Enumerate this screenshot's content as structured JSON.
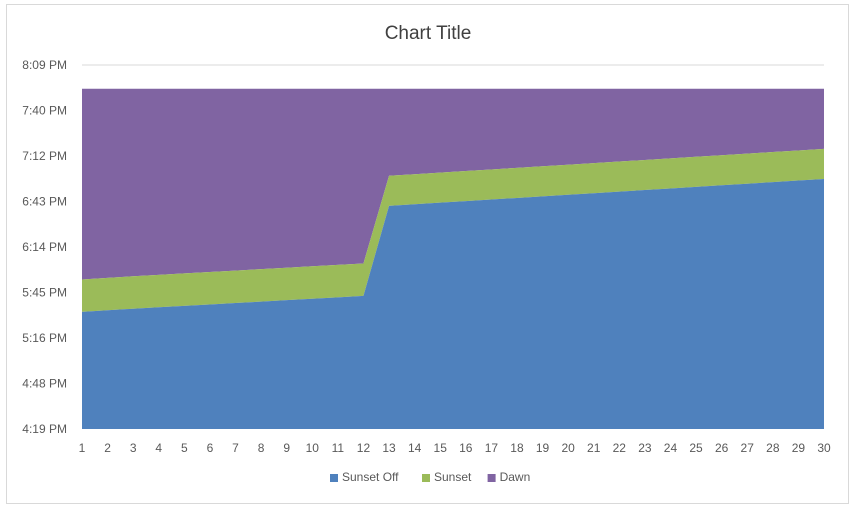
{
  "chart_data": {
    "type": "area",
    "stacked": true,
    "title": "Chart Title",
    "x": [
      1,
      2,
      3,
      4,
      5,
      6,
      7,
      8,
      9,
      10,
      11,
      12,
      13,
      14,
      15,
      16,
      17,
      18,
      19,
      20,
      21,
      22,
      23,
      24,
      25,
      26,
      27,
      28,
      29,
      30
    ],
    "y_tick_labels": [
      "4:19 PM",
      "4:48 PM",
      "5:16 PM",
      "5:45 PM",
      "6:14 PM",
      "6:43 PM",
      "7:12 PM",
      "7:40 PM",
      "8:09 PM"
    ],
    "ylim_minutes": [
      979,
      1209
    ],
    "grid": "horizontal at top only",
    "legend_position": "bottom",
    "series": [
      {
        "name": "Sunset Off",
        "color": "#4f81bd",
        "top_minutes": [
          1053,
          1054,
          1055,
          1055.9,
          1056.8,
          1057.7,
          1058.6,
          1059.5,
          1060.4,
          1061.3,
          1062.2,
          1063.1,
          1120,
          1121,
          1122,
          1123,
          1124,
          1125,
          1126,
          1127,
          1128,
          1129,
          1130,
          1131,
          1132,
          1133,
          1134,
          1135,
          1136,
          1137
        ]
      },
      {
        "name": "Sunset",
        "color": "#9bbb59",
        "top_minutes": [
          1073.5,
          1074.5,
          1075.5,
          1076.4,
          1077.3,
          1078.2,
          1079.1,
          1080,
          1080.9,
          1081.8,
          1082.7,
          1083.6,
          1139,
          1140,
          1141,
          1142,
          1143,
          1144,
          1145,
          1146,
          1147,
          1148,
          1149,
          1150,
          1151,
          1152,
          1153,
          1154,
          1155,
          1156
        ]
      },
      {
        "name": "Dawn",
        "color": "#8064a2",
        "top_minutes": [
          1194,
          1194,
          1194,
          1194,
          1194,
          1194,
          1194,
          1194,
          1194,
          1194,
          1194,
          1194,
          1194,
          1194,
          1194,
          1194,
          1194,
          1194,
          1194,
          1194,
          1194,
          1194,
          1194,
          1194,
          1194,
          1194,
          1194,
          1194,
          1194,
          1194
        ]
      }
    ]
  }
}
